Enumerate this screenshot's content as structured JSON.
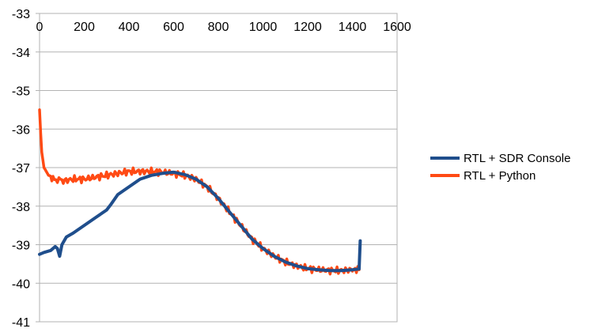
{
  "chart_data": {
    "type": "line",
    "title": "",
    "xlabel": "",
    "ylabel": "",
    "xlim": [
      0,
      1600
    ],
    "ylim": [
      -41,
      -33
    ],
    "x_ticks": [
      "0",
      "200",
      "400",
      "600",
      "800",
      "1000",
      "1200",
      "1400",
      "1600"
    ],
    "y_ticks": [
      "-33",
      "-34",
      "-35",
      "-36",
      "-37",
      "-38",
      "-39",
      "-40",
      "-41"
    ],
    "grid": true,
    "x_axis_position": "top",
    "legend_position": "right",
    "series": [
      {
        "name": "RTL + SDR Console",
        "color": "#1f4e8c",
        "x": [
          0,
          20,
          50,
          70,
          80,
          90,
          100,
          120,
          150,
          200,
          250,
          300,
          320,
          350,
          400,
          450,
          500,
          550,
          600,
          650,
          700,
          750,
          800,
          850,
          900,
          950,
          1000,
          1050,
          1100,
          1150,
          1200,
          1250,
          1300,
          1350,
          1400,
          1430,
          1435
        ],
        "y": [
          -39.25,
          -39.2,
          -39.15,
          -39.05,
          -39.1,
          -39.3,
          -39.0,
          -38.8,
          -38.7,
          -38.5,
          -38.3,
          -38.1,
          -37.95,
          -37.7,
          -37.5,
          -37.3,
          -37.2,
          -37.15,
          -37.12,
          -37.18,
          -37.3,
          -37.5,
          -37.8,
          -38.15,
          -38.5,
          -38.85,
          -39.1,
          -39.3,
          -39.45,
          -39.55,
          -39.62,
          -39.65,
          -39.67,
          -39.67,
          -39.65,
          -39.63,
          -38.9
        ]
      },
      {
        "name": "RTL + Python",
        "color": "#ff4a14",
        "x": [
          0,
          5,
          10,
          20,
          30,
          40,
          50,
          60,
          80,
          100,
          150,
          200,
          250,
          300,
          350,
          400,
          450,
          500,
          550,
          600,
          650,
          700,
          750,
          800,
          850,
          900,
          950,
          1000,
          1050,
          1100,
          1150,
          1200,
          1250,
          1300,
          1350,
          1400,
          1430
        ],
        "y": [
          -35.5,
          -36.1,
          -36.6,
          -37.0,
          -37.1,
          -37.2,
          -37.25,
          -37.3,
          -37.3,
          -37.35,
          -37.3,
          -37.3,
          -37.25,
          -37.2,
          -37.15,
          -37.1,
          -37.1,
          -37.1,
          -37.12,
          -37.15,
          -37.2,
          -37.3,
          -37.5,
          -37.8,
          -38.15,
          -38.5,
          -38.85,
          -39.1,
          -39.3,
          -39.45,
          -39.55,
          -39.62,
          -39.65,
          -39.67,
          -39.67,
          -39.65,
          -39.65
        ]
      }
    ]
  }
}
